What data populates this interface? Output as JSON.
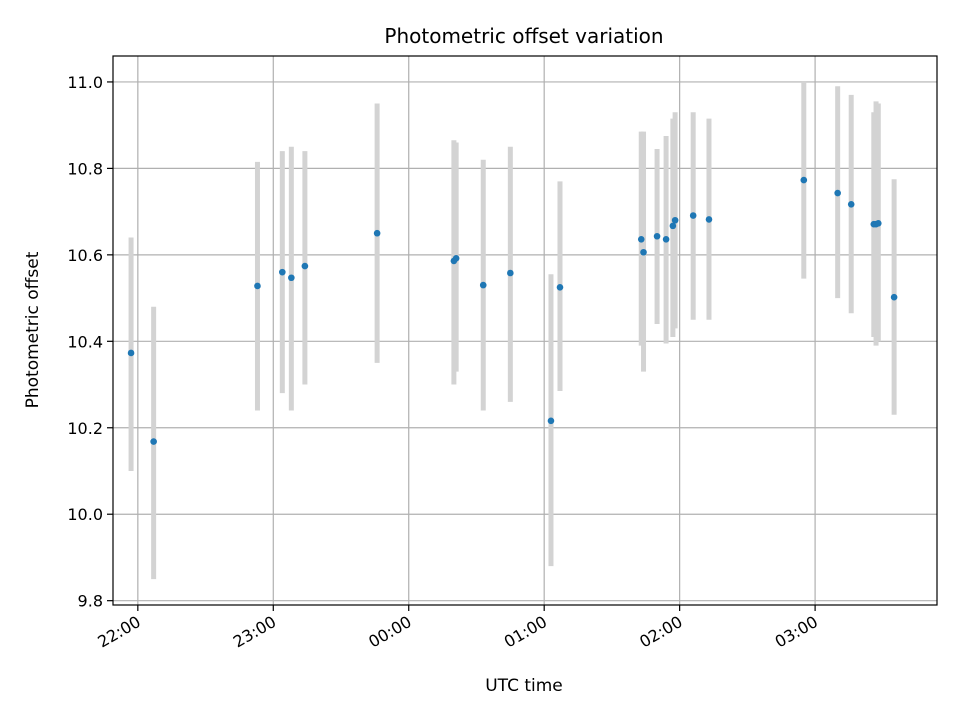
{
  "chart_data": {
    "type": "scatter",
    "title": "Photometric offset variation",
    "xlabel": "UTC time",
    "ylabel": "Photometric offset",
    "x_ticks": [
      "22:00",
      "23:00",
      "00:00",
      "01:00",
      "02:00",
      "03:00"
    ],
    "y_ticks": [
      "9.8",
      "10.0",
      "10.2",
      "10.4",
      "10.6",
      "10.8",
      "11.0"
    ],
    "xlim": [
      "21:49",
      "03:54"
    ],
    "ylim": [
      9.79,
      11.06
    ],
    "grid": true,
    "colors": {
      "points": "#1f77b4",
      "errorbars": "#d3d3d3",
      "grid": "#b0b0b0"
    },
    "points": [
      {
        "t": "21:57",
        "y": 10.373,
        "lo": 10.1,
        "hi": 10.64
      },
      {
        "t": "22:07",
        "y": 10.168,
        "lo": 9.85,
        "hi": 10.48
      },
      {
        "t": "22:53",
        "y": 10.528,
        "lo": 10.24,
        "hi": 10.815
      },
      {
        "t": "23:04",
        "y": 10.56,
        "lo": 10.28,
        "hi": 10.84
      },
      {
        "t": "23:08",
        "y": 10.547,
        "lo": 10.24,
        "hi": 10.85
      },
      {
        "t": "23:14",
        "y": 10.574,
        "lo": 10.3,
        "hi": 10.84
      },
      {
        "t": "23:46",
        "y": 10.65,
        "lo": 10.35,
        "hi": 10.95
      },
      {
        "t": "00:20",
        "y": 10.586,
        "lo": 10.3,
        "hi": 10.865
      },
      {
        "t": "00:21",
        "y": 10.592,
        "lo": 10.33,
        "hi": 10.86
      },
      {
        "t": "00:33",
        "y": 10.53,
        "lo": 10.24,
        "hi": 10.82
      },
      {
        "t": "00:45",
        "y": 10.558,
        "lo": 10.26,
        "hi": 10.85
      },
      {
        "t": "01:03",
        "y": 10.216,
        "lo": 9.88,
        "hi": 10.555
      },
      {
        "t": "01:07",
        "y": 10.525,
        "lo": 10.285,
        "hi": 10.77
      },
      {
        "t": "01:43",
        "y": 10.636,
        "lo": 10.39,
        "hi": 10.885
      },
      {
        "t": "01:44",
        "y": 10.606,
        "lo": 10.33,
        "hi": 10.885
      },
      {
        "t": "01:50",
        "y": 10.643,
        "lo": 10.44,
        "hi": 10.845
      },
      {
        "t": "01:54",
        "y": 10.636,
        "lo": 10.395,
        "hi": 10.875
      },
      {
        "t": "01:57",
        "y": 10.667,
        "lo": 10.41,
        "hi": 10.915
      },
      {
        "t": "01:58",
        "y": 10.68,
        "lo": 10.43,
        "hi": 10.93
      },
      {
        "t": "02:06",
        "y": 10.691,
        "lo": 10.45,
        "hi": 10.93
      },
      {
        "t": "02:13",
        "y": 10.682,
        "lo": 10.45,
        "hi": 10.915
      },
      {
        "t": "02:55",
        "y": 10.773,
        "lo": 10.545,
        "hi": 11.0
      },
      {
        "t": "03:10",
        "y": 10.743,
        "lo": 10.5,
        "hi": 10.99
      },
      {
        "t": "03:16",
        "y": 10.717,
        "lo": 10.465,
        "hi": 10.97
      },
      {
        "t": "03:26",
        "y": 10.671,
        "lo": 10.41,
        "hi": 10.93
      },
      {
        "t": "03:27",
        "y": 10.671,
        "lo": 10.39,
        "hi": 10.955
      },
      {
        "t": "03:28",
        "y": 10.673,
        "lo": 10.4,
        "hi": 10.95
      },
      {
        "t": "03:35",
        "y": 10.502,
        "lo": 10.23,
        "hi": 10.775
      }
    ]
  }
}
